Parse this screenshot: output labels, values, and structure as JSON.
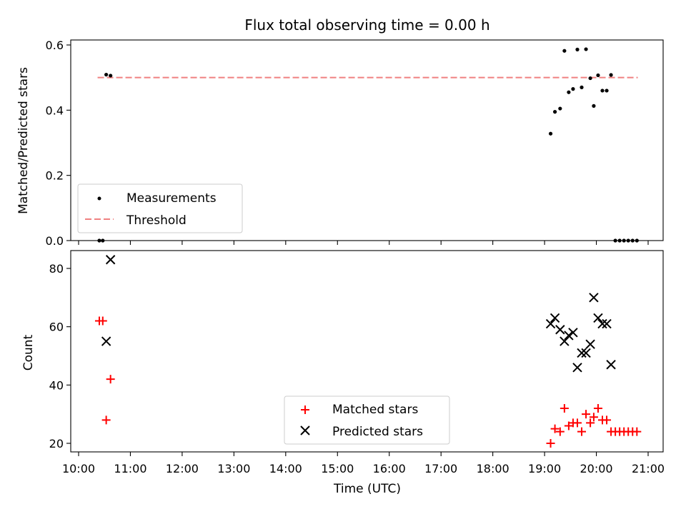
{
  "chart_data": [
    {
      "type": "scatter",
      "title": "Flux total observing time = 0.00 h",
      "ylabel": "Matched/Predicted stars",
      "xlabel": "",
      "xlim": [
        "10:00",
        "21:00"
      ],
      "ylim": [
        0,
        0.62
      ],
      "y_ticks": [
        "0.0",
        "0.2",
        "0.4",
        "0.6"
      ],
      "legend_position": "lower-left",
      "series": [
        {
          "name": "Measurements",
          "marker": "dot",
          "color": "#000000",
          "points": [
            [
              "10:24",
              0.0
            ],
            [
              "10:28",
              0.0
            ],
            [
              "10:32",
              0.509
            ],
            [
              "10:37",
              0.506
            ],
            [
              "19:07",
              0.328
            ],
            [
              "19:12",
              0.395
            ],
            [
              "19:18",
              0.405
            ],
            [
              "19:23",
              0.582
            ],
            [
              "19:28",
              0.455
            ],
            [
              "19:33",
              0.465
            ],
            [
              "19:38",
              0.586
            ],
            [
              "19:43",
              0.47
            ],
            [
              "19:48",
              0.587
            ],
            [
              "19:53",
              0.498
            ],
            [
              "19:57",
              0.413
            ],
            [
              "20:02",
              0.507
            ],
            [
              "20:07",
              0.46
            ],
            [
              "20:12",
              0.46
            ],
            [
              "20:17",
              0.508
            ],
            [
              "20:22",
              0.0
            ],
            [
              "20:27",
              0.0
            ],
            [
              "20:32",
              0.0
            ],
            [
              "20:37",
              0.0
            ],
            [
              "20:42",
              0.0
            ],
            [
              "20:47",
              0.0
            ]
          ]
        },
        {
          "name": "Threshold",
          "marker": "dashed-line",
          "color": "#f08080",
          "points": [
            [
              "10:22",
              0.5
            ],
            [
              "20:48",
              0.5
            ]
          ]
        }
      ]
    },
    {
      "type": "scatter",
      "title": "",
      "ylabel": "Count",
      "xlabel": "Time (UTC)",
      "xlim": [
        "10:00",
        "21:00"
      ],
      "ylim": [
        17,
        87
      ],
      "y_ticks": [
        "20",
        "40",
        "60",
        "80"
      ],
      "x_ticks": [
        "10:00",
        "11:00",
        "12:00",
        "13:00",
        "14:00",
        "15:00",
        "16:00",
        "17:00",
        "18:00",
        "19:00",
        "20:00",
        "21:00"
      ],
      "legend_position": "lower-center",
      "series": [
        {
          "name": "Matched stars",
          "marker": "plus",
          "color": "#ff0000",
          "points": [
            [
              "10:24",
              62
            ],
            [
              "10:28",
              62
            ],
            [
              "10:32",
              28
            ],
            [
              "10:37",
              42
            ],
            [
              "19:07",
              20
            ],
            [
              "19:12",
              25
            ],
            [
              "19:18",
              24
            ],
            [
              "19:23",
              32
            ],
            [
              "19:28",
              26
            ],
            [
              "19:33",
              27
            ],
            [
              "19:38",
              27
            ],
            [
              "19:43",
              24
            ],
            [
              "19:48",
              30
            ],
            [
              "19:53",
              27
            ],
            [
              "19:57",
              29
            ],
            [
              "20:02",
              32
            ],
            [
              "20:07",
              28
            ],
            [
              "20:12",
              28
            ],
            [
              "20:17",
              24
            ],
            [
              "20:22",
              24
            ],
            [
              "20:27",
              24
            ],
            [
              "20:32",
              24
            ],
            [
              "20:37",
              24
            ],
            [
              "20:42",
              24
            ],
            [
              "20:47",
              24
            ]
          ]
        },
        {
          "name": "Predicted stars",
          "marker": "x",
          "color": "#000000",
          "points": [
            [
              "10:32",
              55
            ],
            [
              "10:37",
              83
            ],
            [
              "19:07",
              61
            ],
            [
              "19:12",
              63
            ],
            [
              "19:18",
              59
            ],
            [
              "19:23",
              55
            ],
            [
              "19:28",
              57
            ],
            [
              "19:33",
              58
            ],
            [
              "19:38",
              46
            ],
            [
              "19:43",
              51
            ],
            [
              "19:48",
              51
            ],
            [
              "19:53",
              54
            ],
            [
              "19:57",
              70
            ],
            [
              "20:02",
              63
            ],
            [
              "20:07",
              61
            ],
            [
              "20:12",
              61
            ],
            [
              "20:17",
              47
            ]
          ]
        }
      ]
    }
  ]
}
